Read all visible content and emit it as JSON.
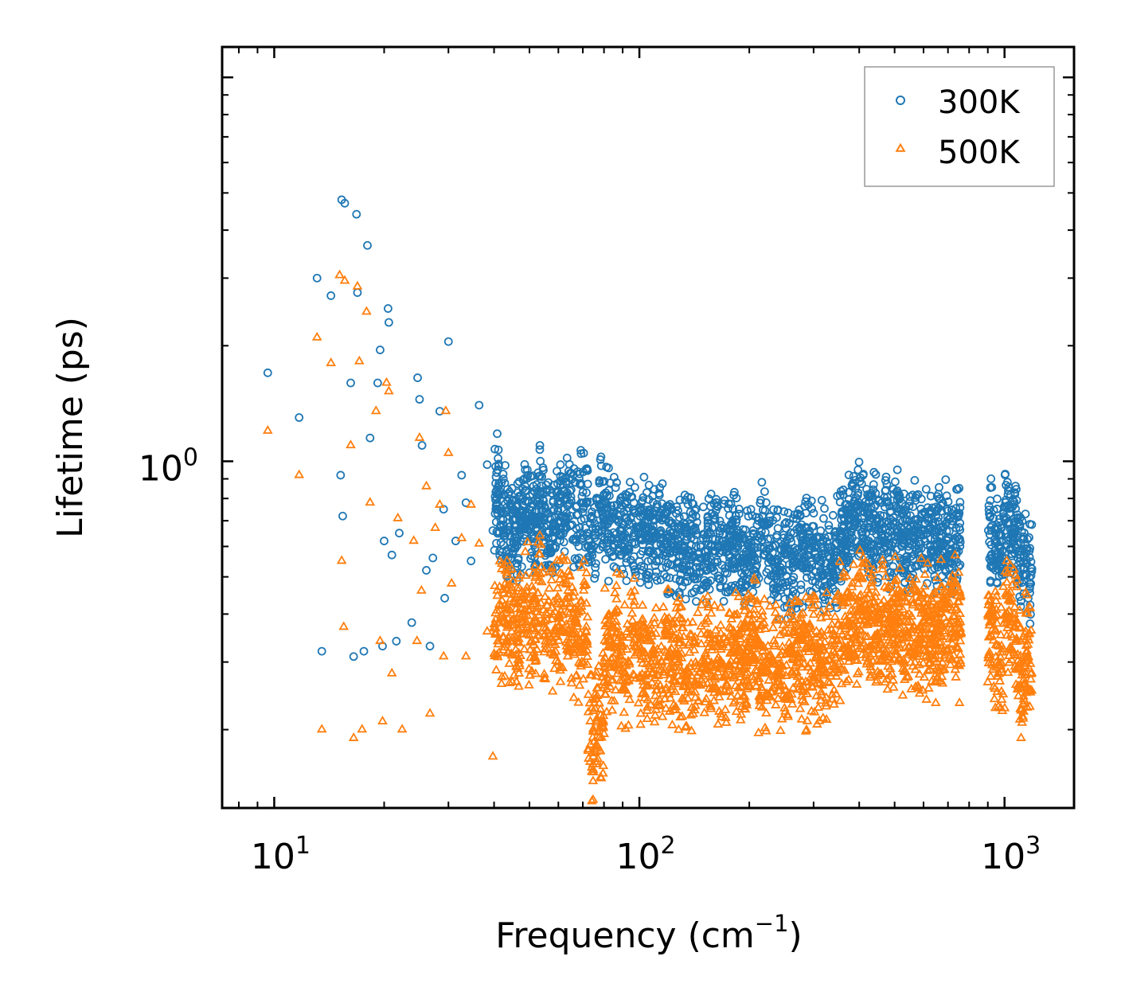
{
  "chart_data": {
    "type": "scatter",
    "xscale": "log",
    "yscale": "log",
    "xlim": [
      7.2,
      1550
    ],
    "ylim": [
      0.125,
      12.0
    ],
    "xlabel": "Frequency (cm",
    "xlabel_sup": "−1",
    "xlabel_end": ")",
    "ylabel": "Lifetime (ps)",
    "x_ticks": [
      {
        "value": 10,
        "base": "10",
        "exp": "1"
      },
      {
        "value": 100,
        "base": "10",
        "exp": "2"
      },
      {
        "value": 1000,
        "base": "10",
        "exp": "3"
      }
    ],
    "y_ticks": [
      {
        "value": 1,
        "base": "10",
        "exp": "0"
      }
    ],
    "legend": {
      "position": "top-right",
      "entries": [
        {
          "label": "300K",
          "marker": "circle",
          "color": "#1f77b4"
        },
        {
          "label": "500K",
          "marker": "triangle",
          "color": "#ff7f0e"
        }
      ]
    },
    "series": [
      {
        "name": "300K",
        "marker": "circle",
        "color": "#1f77b4",
        "scatter_points": [
          [
            9.6,
            1.7
          ],
          [
            11.7,
            1.3
          ],
          [
            13.1,
            3.0
          ],
          [
            13.5,
            0.32
          ],
          [
            14.3,
            2.7
          ],
          [
            15.2,
            0.92
          ],
          [
            15.4,
            0.72
          ],
          [
            15.3,
            4.8
          ],
          [
            15.6,
            4.7
          ],
          [
            16.2,
            1.6
          ],
          [
            16.5,
            0.31
          ],
          [
            16.8,
            4.4
          ],
          [
            16.9,
            2.75
          ],
          [
            17.6,
            0.32
          ],
          [
            18.0,
            3.65
          ],
          [
            18.3,
            1.15
          ],
          [
            19.2,
            1.6
          ],
          [
            19.5,
            1.95
          ],
          [
            19.8,
            0.33
          ],
          [
            20.0,
            0.62
          ],
          [
            20.5,
            2.5
          ],
          [
            20.6,
            2.3
          ],
          [
            21.0,
            0.57
          ],
          [
            21.6,
            0.34
          ],
          [
            22.0,
            0.65
          ],
          [
            23.8,
            0.38
          ],
          [
            24.7,
            1.65
          ],
          [
            25.0,
            1.45
          ],
          [
            25.4,
            1.1
          ],
          [
            26.1,
            0.52
          ],
          [
            26.7,
            0.33
          ],
          [
            27.2,
            0.56
          ],
          [
            28.4,
            1.35
          ],
          [
            29.1,
            0.75
          ],
          [
            29.3,
            0.44
          ],
          [
            30.0,
            2.05
          ],
          [
            31.4,
            0.62
          ],
          [
            32.6,
            0.92
          ],
          [
            33.5,
            0.78
          ],
          [
            34.6,
            0.55
          ],
          [
            36.4,
            1.4
          ],
          [
            38.3,
            0.98
          ],
          [
            39.7,
            0.66
          ],
          [
            40.8,
            1.18
          ],
          [
            41.9,
            0.88
          ],
          [
            44.0,
            0.72
          ],
          [
            46.2,
            0.76
          ],
          [
            48.7,
            0.95
          ],
          [
            51.0,
            0.82
          ],
          [
            53.4,
            1.1
          ],
          [
            55.9,
            0.84
          ],
          [
            58.1,
            0.79
          ],
          [
            60.8,
            0.98
          ],
          [
            63.4,
            1.02
          ],
          [
            66.9,
            0.88
          ],
          [
            70.4,
            1.05
          ],
          [
            74.1,
            0.72
          ],
          [
            78.2,
            1.01
          ],
          [
            82.5,
            0.84
          ],
          [
            86.9,
            0.77
          ],
          [
            91.6,
            0.82
          ],
          [
            96.6,
            0.78
          ],
          [
            102.0,
            0.79
          ],
          [
            108.0,
            0.66
          ],
          [
            114.0,
            0.72
          ],
          [
            121.0,
            0.7
          ],
          [
            128.0,
            0.62
          ],
          [
            135.0,
            0.66
          ],
          [
            143.0,
            0.6
          ],
          [
            152.0,
            0.58
          ],
          [
            161.0,
            0.71
          ],
          [
            170.0,
            0.62
          ],
          [
            181.0,
            0.64
          ],
          [
            192.0,
            0.55
          ],
          [
            204.0,
            0.57
          ],
          [
            217.0,
            0.72
          ],
          [
            231.0,
            0.55
          ],
          [
            246.0,
            0.52
          ],
          [
            262.0,
            0.49
          ],
          [
            279.0,
            0.62
          ],
          [
            297.0,
            0.6
          ],
          [
            316.0,
            0.57
          ],
          [
            337.0,
            0.53
          ],
          [
            359.0,
            0.68
          ],
          [
            383.0,
            0.86
          ],
          [
            397.0,
            0.95
          ],
          [
            410.0,
            0.92
          ],
          [
            425.0,
            0.81
          ],
          [
            438.0,
            0.87
          ],
          [
            452.0,
            0.71
          ],
          [
            470.0,
            0.76
          ],
          [
            488.0,
            0.68
          ],
          [
            507.0,
            0.83
          ],
          [
            527.0,
            0.7
          ],
          [
            548.0,
            0.61
          ],
          [
            570.0,
            0.79
          ],
          [
            593.0,
            0.73
          ],
          [
            617.0,
            0.7
          ],
          [
            642.0,
            0.66
          ],
          [
            668.0,
            0.67
          ],
          [
            695.0,
            0.75
          ],
          [
            724.0,
            0.71
          ],
          [
            755.0,
            0.69
          ],
          [
            908.0,
            0.73
          ],
          [
            944.0,
            0.67
          ],
          [
            982.0,
            0.62
          ],
          [
            1022.0,
            0.82
          ],
          [
            1063.0,
            0.71
          ],
          [
            1106.0,
            0.57
          ],
          [
            1151.0,
            0.54
          ],
          [
            1180.0,
            0.48
          ]
        ],
        "band": {
          "x_start": 40,
          "x_end": 1190,
          "x_gaps": [
            [
              760,
              900
            ]
          ],
          "lifetime_range": "0.35–0.95 ps (dense)"
        }
      },
      {
        "name": "500K",
        "marker": "triangle",
        "color": "#ff7f0e",
        "scatter_points": [
          [
            9.6,
            1.2
          ],
          [
            11.7,
            0.92
          ],
          [
            13.1,
            2.1
          ],
          [
            13.5,
            0.2
          ],
          [
            14.3,
            1.8
          ],
          [
            15.1,
            3.05
          ],
          [
            15.3,
            0.55
          ],
          [
            15.5,
            0.37
          ],
          [
            15.6,
            2.95
          ],
          [
            16.2,
            1.1
          ],
          [
            16.5,
            0.19
          ],
          [
            16.9,
            2.85
          ],
          [
            17.1,
            1.82
          ],
          [
            17.4,
            0.2
          ],
          [
            17.9,
            2.45
          ],
          [
            18.3,
            0.78
          ],
          [
            19.0,
            1.35
          ],
          [
            19.5,
            0.34
          ],
          [
            19.8,
            0.21
          ],
          [
            20.3,
            1.6
          ],
          [
            20.6,
            1.52
          ],
          [
            21.0,
            0.28
          ],
          [
            21.8,
            0.71
          ],
          [
            22.4,
            0.2
          ],
          [
            24.1,
            0.62
          ],
          [
            24.6,
            0.34
          ],
          [
            25.0,
            1.15
          ],
          [
            25.3,
            0.46
          ],
          [
            26.1,
            0.86
          ],
          [
            26.7,
            0.22
          ],
          [
            27.6,
            0.67
          ],
          [
            28.4,
            0.77
          ],
          [
            29.1,
            0.31
          ],
          [
            29.5,
            1.35
          ],
          [
            30.0,
            1.05
          ],
          [
            30.6,
            0.48
          ],
          [
            32.6,
            0.63
          ],
          [
            33.5,
            0.31
          ],
          [
            34.6,
            0.77
          ],
          [
            36.4,
            0.61
          ],
          [
            38.3,
            0.36
          ],
          [
            39.7,
            0.17
          ],
          [
            40.8,
            0.46
          ],
          [
            44.0,
            0.52
          ],
          [
            46.2,
            0.39
          ],
          [
            48.7,
            0.58
          ],
          [
            51.0,
            0.46
          ],
          [
            53.4,
            0.64
          ],
          [
            55.9,
            0.42
          ],
          [
            58.1,
            0.43
          ],
          [
            60.8,
            0.51
          ],
          [
            63.4,
            0.55
          ],
          [
            66.9,
            0.39
          ],
          [
            70.4,
            0.46
          ],
          [
            74.1,
            0.13
          ],
          [
            78.2,
            0.15
          ],
          [
            82.5,
            0.33
          ],
          [
            86.9,
            0.37
          ],
          [
            91.6,
            0.28
          ],
          [
            96.6,
            0.42
          ],
          [
            102.0,
            0.31
          ],
          [
            108.0,
            0.28
          ],
          [
            114.0,
            0.26
          ],
          [
            121.0,
            0.32
          ],
          [
            128.0,
            0.3
          ],
          [
            135.0,
            0.27
          ],
          [
            143.0,
            0.26
          ],
          [
            152.0,
            0.31
          ],
          [
            161.0,
            0.27
          ],
          [
            170.0,
            0.29
          ],
          [
            181.0,
            0.32
          ],
          [
            192.0,
            0.3
          ],
          [
            204.0,
            0.37
          ],
          [
            217.0,
            0.28
          ],
          [
            231.0,
            0.3
          ],
          [
            246.0,
            0.28
          ],
          [
            262.0,
            0.32
          ],
          [
            279.0,
            0.29
          ],
          [
            297.0,
            0.33
          ],
          [
            316.0,
            0.3
          ],
          [
            337.0,
            0.34
          ],
          [
            359.0,
            0.42
          ],
          [
            383.0,
            0.48
          ],
          [
            397.0,
            0.5
          ],
          [
            410.0,
            0.56
          ],
          [
            425.0,
            0.45
          ],
          [
            438.0,
            0.52
          ],
          [
            452.0,
            0.41
          ],
          [
            470.0,
            0.47
          ],
          [
            488.0,
            0.43
          ],
          [
            507.0,
            0.49
          ],
          [
            527.0,
            0.41
          ],
          [
            548.0,
            0.4
          ],
          [
            570.0,
            0.46
          ],
          [
            593.0,
            0.44
          ],
          [
            617.0,
            0.42
          ],
          [
            642.0,
            0.38
          ],
          [
            668.0,
            0.42
          ],
          [
            695.0,
            0.44
          ],
          [
            724.0,
            0.46
          ],
          [
            755.0,
            0.4
          ],
          [
            908.0,
            0.43
          ],
          [
            944.0,
            0.36
          ],
          [
            982.0,
            0.33
          ],
          [
            1022.0,
            0.51
          ],
          [
            1063.0,
            0.4
          ],
          [
            1106.0,
            0.29
          ],
          [
            1110.0,
            0.19
          ],
          [
            1151.0,
            0.32
          ],
          [
            1180.0,
            0.27
          ]
        ],
        "band": {
          "x_start": 40,
          "x_end": 1190,
          "x_gaps": [
            [
              760,
              900
            ]
          ],
          "lifetime_range": "0.18–0.55 ps (dense)"
        }
      }
    ]
  }
}
